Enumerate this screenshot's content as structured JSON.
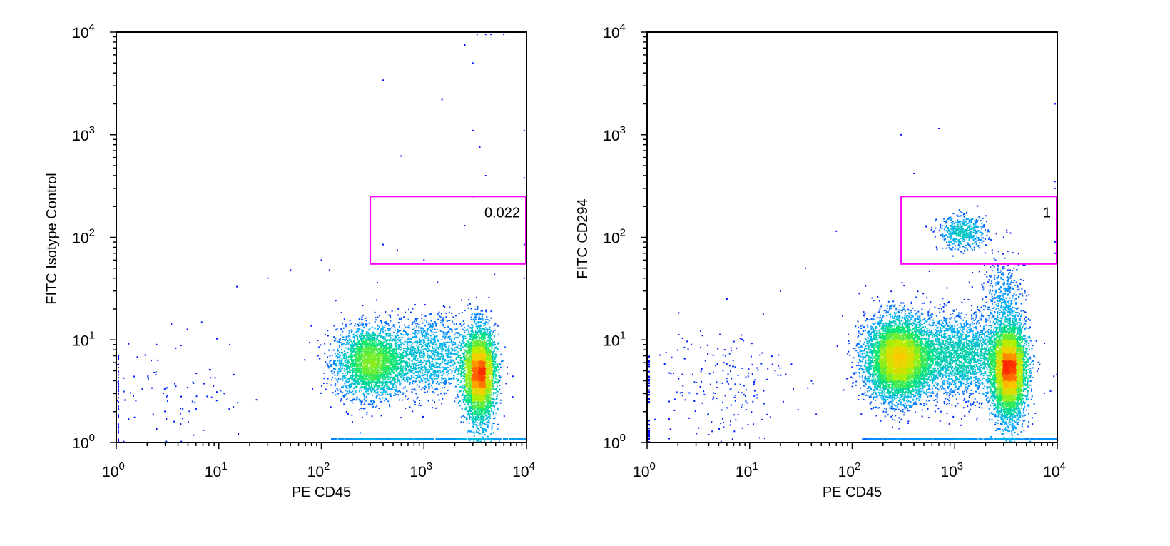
{
  "chart_data": [
    {
      "type": "scatter",
      "xlabel": "PE CD45",
      "ylabel": "FITC Isotype Control",
      "xscale": "log",
      "yscale": "log",
      "xlim": [
        1,
        10000
      ],
      "ylim": [
        1,
        10000
      ],
      "ticks": [
        {
          "base": "10",
          "exp": "0",
          "value": 1
        },
        {
          "base": "10",
          "exp": "1",
          "value": 10
        },
        {
          "base": "10",
          "exp": "2",
          "value": 100
        },
        {
          "base": "10",
          "exp": "3",
          "value": 1000
        },
        {
          "base": "10",
          "exp": "4",
          "value": 10000
        }
      ],
      "gate": {
        "label": "0.022",
        "x": [
          300,
          10000
        ],
        "y": [
          55,
          250
        ],
        "color": "#ff00ff"
      },
      "populations": [
        {
          "cx": 300,
          "cy": 6,
          "sx": 0.17,
          "sy": 0.17,
          "n": 2600
        },
        {
          "cx": 3500,
          "cy": 4.5,
          "sx": 0.075,
          "sy": 0.23,
          "n": 3600
        },
        {
          "cx": 1100,
          "cy": 7,
          "sx": 0.25,
          "sy": 0.2,
          "n": 1400
        },
        {
          "cx": 4,
          "cy": 3.5,
          "sx": 0.35,
          "sy": 0.28,
          "n": 90
        }
      ],
      "outliers": [
        [
          3300,
          9500
        ],
        [
          4000,
          9500
        ],
        [
          4500,
          9500
        ],
        [
          6000,
          9500
        ],
        [
          2500,
          7500
        ],
        [
          3000,
          5000
        ],
        [
          400,
          3400
        ],
        [
          1500,
          2200
        ],
        [
          3000,
          1100
        ],
        [
          9500,
          1100
        ],
        [
          600,
          620
        ],
        [
          3500,
          760
        ],
        [
          4000,
          400
        ],
        [
          9500,
          380
        ],
        [
          3000,
          250
        ],
        [
          2500,
          130
        ],
        [
          550,
          75
        ],
        [
          400,
          85
        ],
        [
          1000,
          60
        ],
        [
          100,
          60
        ],
        [
          50,
          48
        ],
        [
          30,
          40
        ],
        [
          15,
          33
        ],
        [
          120,
          48
        ],
        [
          9500,
          85
        ],
        [
          9500,
          40
        ]
      ]
    },
    {
      "type": "scatter",
      "xlabel": "PE CD45",
      "ylabel": "FITC CD294",
      "xscale": "log",
      "yscale": "log",
      "xlim": [
        1,
        10000
      ],
      "ylim": [
        1,
        10000
      ],
      "ticks": [
        {
          "base": "10",
          "exp": "0",
          "value": 1
        },
        {
          "base": "10",
          "exp": "1",
          "value": 10
        },
        {
          "base": "10",
          "exp": "2",
          "value": 100
        },
        {
          "base": "10",
          "exp": "3",
          "value": 1000
        },
        {
          "base": "10",
          "exp": "4",
          "value": 10000
        }
      ],
      "gate": {
        "label": "1",
        "x": [
          300,
          10000
        ],
        "y": [
          55,
          250
        ],
        "color": "#ff00ff"
      },
      "populations": [
        {
          "cx": 280,
          "cy": 6.5,
          "sx": 0.16,
          "sy": 0.2,
          "n": 5200
        },
        {
          "cx": 3400,
          "cy": 5,
          "sx": 0.08,
          "sy": 0.24,
          "n": 4600
        },
        {
          "cx": 1100,
          "cy": 7,
          "sx": 0.28,
          "sy": 0.2,
          "n": 2600
        },
        {
          "cx": 1200,
          "cy": 110,
          "sx": 0.12,
          "sy": 0.08,
          "n": 500
        },
        {
          "cx": 3000,
          "cy": 30,
          "sx": 0.1,
          "sy": 0.15,
          "n": 300
        },
        {
          "cx": 5,
          "cy": 4,
          "sx": 0.35,
          "sy": 0.28,
          "n": 200
        }
      ],
      "outliers": [
        [
          9500,
          2000
        ],
        [
          700,
          1150
        ],
        [
          300,
          1000
        ],
        [
          400,
          420
        ],
        [
          9500,
          350
        ],
        [
          9500,
          300
        ],
        [
          70,
          115
        ],
        [
          35,
          50
        ],
        [
          20,
          30
        ],
        [
          6,
          25
        ],
        [
          3000,
          100
        ],
        [
          2500,
          60
        ],
        [
          3500,
          110
        ],
        [
          9500,
          90
        ],
        [
          9500,
          70
        ]
      ]
    }
  ]
}
